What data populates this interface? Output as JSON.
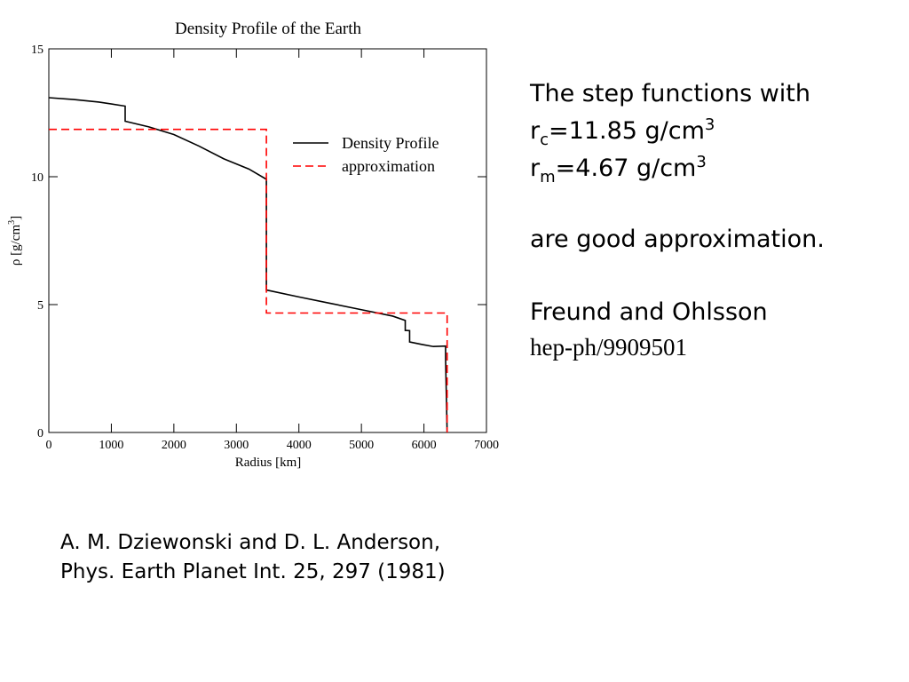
{
  "chart_data": {
    "type": "line",
    "title": "Density Profile of the Earth",
    "xlabel": "Radius [km]",
    "ylabel": {
      "text": "ρ [g/cm",
      "sup": "3",
      "end": "]"
    },
    "xlim": [
      0,
      7000
    ],
    "xticks": [
      0,
      1000,
      2000,
      3000,
      4000,
      5000,
      6000,
      7000
    ],
    "ylim": [
      0,
      15
    ],
    "yticks": [
      0,
      5,
      10,
      15
    ],
    "legend": "upper right",
    "series": [
      {
        "name": "Density Profile",
        "color": "#000000",
        "style": "solid",
        "x": [
          0,
          400,
          800,
          1221,
          1221,
          1600,
          2000,
          2400,
          2800,
          3200,
          3480,
          3480,
          4000,
          4500,
          5000,
          5500,
          5701,
          5701,
          5771,
          5771,
          5971,
          6151,
          6346,
          6346,
          6371
        ],
        "values": [
          13.09,
          13.02,
          12.92,
          12.76,
          12.17,
          11.95,
          11.65,
          11.2,
          10.7,
          10.3,
          9.9,
          5.57,
          5.3,
          5.05,
          4.8,
          4.55,
          4.38,
          3.99,
          3.98,
          3.54,
          3.44,
          3.36,
          3.38,
          2.9,
          0
        ]
      },
      {
        "name": "approximation",
        "color": "#ff0000",
        "style": "dashed",
        "x": [
          0,
          3480,
          3480,
          6371,
          6371
        ],
        "values": [
          11.85,
          11.85,
          4.67,
          4.67,
          0
        ]
      }
    ]
  },
  "notes": {
    "line1": "The step functions with",
    "rc": {
      "r": "r",
      "sub": "c",
      "text": "=11.85 g/cm",
      "sup": "3"
    },
    "rm": {
      "r": "r",
      "sub": "m",
      "text": "=4.67 g/cm",
      "sup": "3"
    },
    "line4": "are good approximation.",
    "author": "Freund and Ohlsson",
    "ref": "hep-ph/9909501"
  },
  "citation": {
    "line1": "A. M. Dziewonski and D. L. Anderson,",
    "line2": "Phys. Earth Planet Int. 25, 297 (1981)"
  }
}
